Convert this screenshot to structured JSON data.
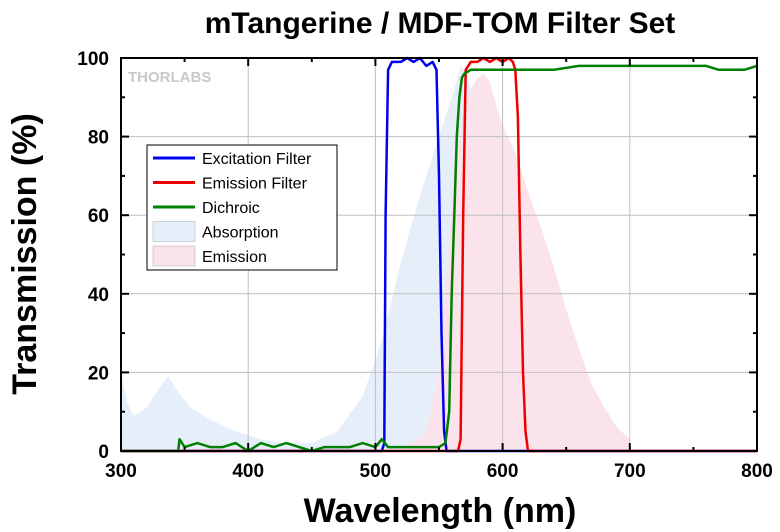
{
  "chart_data": {
    "type": "line",
    "title": "mTangerine / MDF-TOM Filter Set",
    "xlabel": "Wavelength (nm)",
    "ylabel": "Transmission (%)",
    "xlim": [
      300,
      800
    ],
    "ylim": [
      0,
      100
    ],
    "xticks": [
      "300",
      "400",
      "500",
      "600",
      "700",
      "800"
    ],
    "yticks": [
      "0",
      "20",
      "40",
      "60",
      "80",
      "100"
    ],
    "grid": true,
    "legend_position": "left",
    "watermark": "THORLABS",
    "series": [
      {
        "name": "Excitation Filter",
        "color": "#0000ee",
        "kind": "line",
        "x": [
          300,
          505,
          507,
          508,
          510,
          513,
          520,
          525,
          530,
          535,
          540,
          545,
          548,
          550,
          552,
          554,
          556,
          560,
          800
        ],
        "y": [
          0,
          0,
          2,
          60,
          97,
          99,
          99,
          100,
          99,
          100,
          98,
          99,
          97,
          70,
          30,
          5,
          0,
          0,
          0
        ]
      },
      {
        "name": "Emission Filter",
        "color": "#ee0000",
        "kind": "line",
        "x": [
          300,
          565,
          567,
          569,
          571,
          575,
          580,
          585,
          590,
          595,
          600,
          605,
          608,
          610,
          612,
          614,
          616,
          618,
          620,
          800
        ],
        "y": [
          0,
          0,
          3,
          60,
          97,
          99,
          99,
          100,
          99,
          100,
          99,
          100,
          99,
          97,
          85,
          50,
          20,
          5,
          0,
          0
        ]
      },
      {
        "name": "Dichroic",
        "color": "#008000",
        "kind": "line",
        "x": [
          300,
          345,
          346,
          350,
          360,
          370,
          380,
          390,
          400,
          410,
          420,
          430,
          440,
          450,
          460,
          470,
          480,
          490,
          500,
          505,
          510,
          515,
          520,
          530,
          540,
          550,
          555,
          558,
          560,
          562,
          564,
          566,
          568,
          570,
          575,
          580,
          590,
          600,
          620,
          640,
          660,
          680,
          700,
          720,
          740,
          760,
          770,
          780,
          790,
          800
        ],
        "y": [
          0,
          0,
          3,
          1,
          2,
          1,
          1,
          2,
          0,
          2,
          1,
          2,
          1,
          0,
          1,
          1,
          1,
          2,
          1,
          3,
          1,
          1,
          1,
          1,
          1,
          1,
          2,
          10,
          40,
          60,
          80,
          90,
          95,
          96,
          97,
          97,
          97,
          97,
          97,
          97,
          98,
          98,
          98,
          98,
          98,
          98,
          97,
          97,
          97,
          98
        ]
      },
      {
        "name": "Absorption",
        "color": "#e6eefa",
        "kind": "area",
        "x": [
          300,
          305,
          310,
          320,
          330,
          337,
          345,
          355,
          370,
          390,
          410,
          430,
          450,
          470,
          490,
          505,
          520,
          535,
          545,
          555,
          562,
          567,
          572,
          578,
          585,
          590,
          596,
          600,
          605,
          610,
          620
        ],
        "y": [
          20,
          12,
          9,
          11,
          16,
          19,
          15,
          11,
          8,
          5,
          3,
          2,
          2,
          5,
          14,
          28,
          48,
          65,
          75,
          85,
          92,
          98,
          96,
          88,
          70,
          52,
          32,
          18,
          8,
          3,
          0
        ]
      },
      {
        "name": "Emission",
        "color": "#fbe3ec",
        "kind": "area",
        "x": [
          520,
          540,
          550,
          556,
          562,
          566,
          570,
          575,
          580,
          585,
          590,
          595,
          600,
          610,
          620,
          630,
          640,
          650,
          660,
          670,
          680,
          690,
          700,
          700
        ],
        "y": [
          0,
          5,
          20,
          45,
          70,
          80,
          88,
          92,
          95,
          96,
          94,
          88,
          83,
          76,
          66,
          57,
          47,
          36,
          26,
          17,
          11,
          6,
          3,
          0
        ]
      }
    ]
  }
}
